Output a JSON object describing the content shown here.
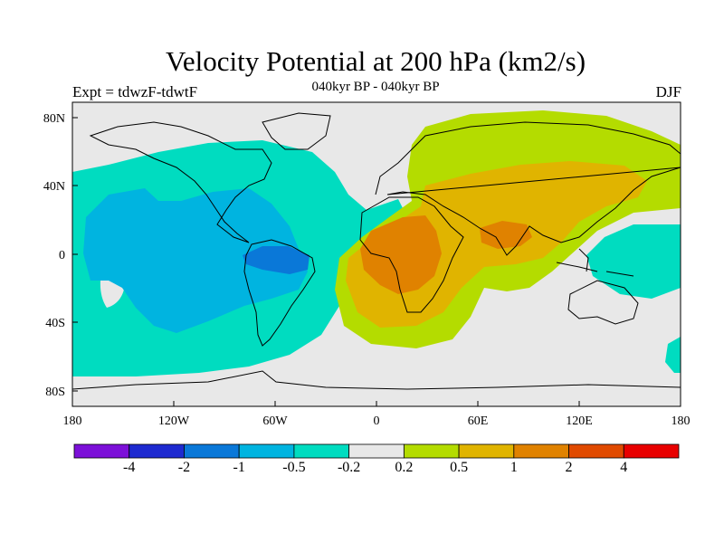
{
  "title": "Velocity Potential at 200 hPa (km2/s)",
  "subtitle": "040kyr BP - 040kyr BP",
  "left_label": "Expt = tdwzF-tdwtF",
  "right_label": "DJF",
  "y_ticks": [
    "80N",
    "40N",
    "0",
    "40S",
    "80S"
  ],
  "x_ticks": [
    "180",
    "120W",
    "60W",
    "0",
    "60E",
    "120E",
    "180"
  ],
  "colorbar": {
    "labels": [
      "-4",
      "-2",
      "-1",
      "-0.5",
      "-0.2",
      "0.2",
      "0.5",
      "1",
      "2",
      "4"
    ],
    "colors": [
      "#7c10d8",
      "#1e2ad0",
      "#0a78d8",
      "#00b4e0",
      "#00dcc0",
      "#e8e8e8",
      "#b4dc00",
      "#e0b400",
      "#e08200",
      "#e04a00",
      "#e80000"
    ]
  },
  "colors": {
    "background": "#e8e8e8",
    "neg_weak": "#00dcc0",
    "neg_mid": "#00b4e0",
    "neg_strong": "#0a78d8",
    "pos_weak": "#b4dc00",
    "pos_mid": "#e0b400",
    "pos_strong": "#e08200"
  }
}
